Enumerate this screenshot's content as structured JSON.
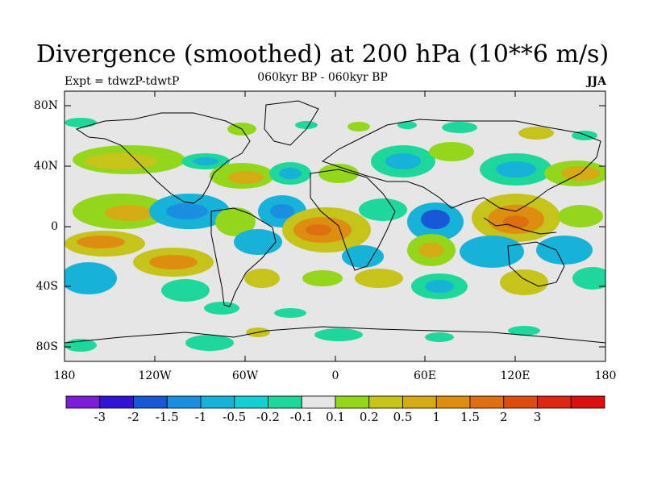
{
  "title": "Divergence (smoothed) at 200 hPa (10**6 m/s)",
  "left_subtitle": "Expt = tdwzP-tdwtP",
  "center_subtitle": "060kyr BP - 060kyr BP",
  "right_subtitle": "JJA",
  "lat_labels": [
    "80N",
    "40N",
    "0",
    "40S",
    "80S"
  ],
  "lon_labels": [
    "180",
    "120W",
    "60W",
    "0",
    "60E",
    "120E",
    "180"
  ],
  "colorbar": {
    "colors": [
      "#7a1fd6",
      "#3313d6",
      "#1857d6",
      "#1a8fe0",
      "#16b2d8",
      "#16cfd3",
      "#1dd89a",
      "#e6e6e6",
      "#94d61b",
      "#c6c31a",
      "#d4ab15",
      "#dd8e11",
      "#de6f10",
      "#dc4c10",
      "#dd2613",
      "#dc0f10"
    ],
    "labels": [
      "-3",
      "-2",
      "-1.5",
      "-1",
      "-0.5",
      "-0.2",
      "-0.1",
      "0.1",
      "0.2",
      "0.5",
      "1",
      "1.5",
      "2",
      "3"
    ]
  }
}
